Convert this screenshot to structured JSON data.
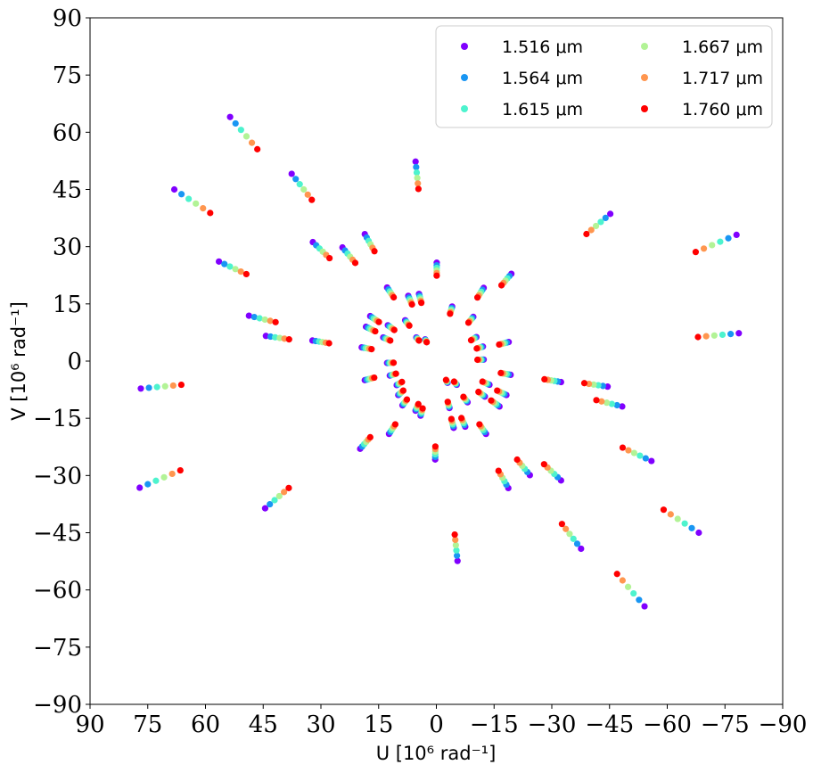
{
  "chart_data": {
    "type": "scatter",
    "title": "",
    "xlabel": "U [10⁶ rad⁻¹]",
    "ylabel": "V [10⁶ rad⁻¹]",
    "xlim": [
      90,
      -90
    ],
    "ylim": [
      -90,
      90
    ],
    "xticks": [
      90,
      75,
      60,
      45,
      30,
      15,
      0,
      -15,
      -30,
      -45,
      -60,
      -75,
      -90
    ],
    "yticks": [
      90,
      75,
      60,
      45,
      30,
      15,
      0,
      -15,
      -30,
      -45,
      -60,
      -75,
      -90
    ],
    "xtick_labels": [
      "90",
      "75",
      "60",
      "45",
      "30",
      "15",
      "0",
      "−15",
      "−30",
      "−45",
      "−60",
      "−75",
      "−90"
    ],
    "ytick_labels": [
      "90",
      "75",
      "60",
      "45",
      "30",
      "15",
      "0",
      "−15",
      "−30",
      "−45",
      "−60",
      "−75",
      "−90"
    ],
    "grid": false,
    "legend_position": "top-right",
    "legend_columns": 2,
    "series": [
      {
        "name": "1.516 μm",
        "color": "#8000ff"
      },
      {
        "name": "1.564 μm",
        "color": "#1996f3"
      },
      {
        "name": "1.615 μm",
        "color": "#4df3ce"
      },
      {
        "name": "1.667 μm",
        "color": "#b2f396"
      },
      {
        "name": "1.717 μm",
        "color": "#ff964f"
      },
      {
        "name": "1.760 μm",
        "color": "#ff0000"
      }
    ],
    "baselines": [
      {
        "u": 53.6,
        "v": 64.0,
        "ratio": 0.868
      },
      {
        "u": 37.6,
        "v": 49.1,
        "ratio": 0.861
      },
      {
        "u": 5.4,
        "v": 52.3,
        "ratio": 0.863
      },
      {
        "u": 68.1,
        "v": 45.0,
        "ratio": 0.863
      },
      {
        "u": -45.2,
        "v": 38.6,
        "ratio": 0.863
      },
      {
        "u": -78.0,
        "v": 33.1,
        "ratio": 0.864
      },
      {
        "u": 32.1,
        "v": 31.2,
        "ratio": 0.865
      },
      {
        "u": 24.4,
        "v": 29.8,
        "ratio": 0.864
      },
      {
        "u": 18.6,
        "v": 33.3,
        "ratio": 0.865
      },
      {
        "u": 56.5,
        "v": 26.1,
        "ratio": 0.874
      },
      {
        "u": -0.1,
        "v": 25.8,
        "ratio": 0.868
      },
      {
        "u": -19.5,
        "v": 22.9,
        "ratio": 0.868
      },
      {
        "u": 48.7,
        "v": 11.9,
        "ratio": 0.858
      },
      {
        "u": 44.3,
        "v": 6.6,
        "ratio": 0.864
      },
      {
        "u": 32.2,
        "v": 5.4,
        "ratio": 0.866
      },
      {
        "u": -78.6,
        "v": 7.3,
        "ratio": 0.865
      },
      {
        "u": 76.8,
        "v": -7.2,
        "ratio": 0.863
      },
      {
        "u": 77.1,
        "v": -33.2,
        "ratio": 0.863
      },
      {
        "u": 44.5,
        "v": -38.6,
        "ratio": 0.862
      },
      {
        "u": 0.3,
        "v": -25.8,
        "ratio": 0.868
      },
      {
        "u": -5.5,
        "v": -52.4,
        "ratio": 0.868
      },
      {
        "u": -18.7,
        "v": -33.3,
        "ratio": 0.864
      },
      {
        "u": -24.3,
        "v": -29.9,
        "ratio": 0.864
      },
      {
        "u": -32.4,
        "v": -31.3,
        "ratio": 0.864
      },
      {
        "u": -37.6,
        "v": -49.2,
        "ratio": 0.868
      },
      {
        "u": -54.1,
        "v": -64.3,
        "ratio": 0.868
      },
      {
        "u": -68.2,
        "v": -45.0,
        "ratio": 0.866
      },
      {
        "u": -55.9,
        "v": -26.2,
        "ratio": 0.866
      },
      {
        "u": -48.3,
        "v": -11.9,
        "ratio": 0.861
      },
      {
        "u": -44.5,
        "v": -6.7,
        "ratio": 0.864
      },
      {
        "u": -32.4,
        "v": -5.5,
        "ratio": 0.867
      },
      {
        "u": 19.8,
        "v": -23.0,
        "ratio": 0.868
      },
      {
        "u": 12.8,
        "v": 19.3,
        "ratio": 0.866
      },
      {
        "u": 7.3,
        "v": 17.1,
        "ratio": 0.868
      },
      {
        "u": 17.2,
        "v": 11.8,
        "ratio": 0.868
      },
      {
        "u": 18.3,
        "v": 9.0,
        "ratio": 0.868
      },
      {
        "u": 19.4,
        "v": 3.6,
        "ratio": 0.868
      },
      {
        "u": 8.1,
        "v": 10.7,
        "ratio": 0.868
      },
      {
        "u": 5.2,
        "v": 6.2,
        "ratio": 0.868
      },
      {
        "u": 2.9,
        "v": 5.7,
        "ratio": 0.868
      },
      {
        "u": 12.6,
        "v": 9.4,
        "ratio": 0.868
      },
      {
        "u": 13.8,
        "v": 6.2,
        "ratio": 0.868
      },
      {
        "u": 4.5,
        "v": 17.6,
        "ratio": 0.868
      },
      {
        "u": -4.1,
        "v": 14.3,
        "ratio": 0.868
      },
      {
        "u": -9.6,
        "v": 11.6,
        "ratio": 0.868
      },
      {
        "u": -12.3,
        "v": 19.2,
        "ratio": 0.868
      },
      {
        "u": -10.4,
        "v": 6.3,
        "ratio": 0.868
      },
      {
        "u": -12.1,
        "v": 3.8,
        "ratio": 0.868
      },
      {
        "u": -18.8,
        "v": 5.0,
        "ratio": 0.868
      },
      {
        "u": 18.6,
        "v": -5.0,
        "ratio": 0.868
      },
      {
        "u": 12.8,
        "v": -0.5,
        "ratio": 0.868
      },
      {
        "u": 12.1,
        "v": -3.8,
        "ratio": 0.868
      },
      {
        "u": 10.3,
        "v": -6.3,
        "ratio": 0.868
      },
      {
        "u": 9.9,
        "v": -8.9,
        "ratio": 0.868
      },
      {
        "u": 8.8,
        "v": -11.6,
        "ratio": 0.868
      },
      {
        "u": 5.4,
        "v": -13.0,
        "ratio": 0.868
      },
      {
        "u": 12.3,
        "v": -19.1,
        "ratio": 0.868
      },
      {
        "u": 4.1,
        "v": -14.3,
        "ratio": 0.868
      },
      {
        "u": -2.9,
        "v": -5.7,
        "ratio": 0.868
      },
      {
        "u": -5.3,
        "v": -6.2,
        "ratio": 0.868
      },
      {
        "u": -3.4,
        "v": -12.3,
        "ratio": 0.868
      },
      {
        "u": -4.5,
        "v": -17.5,
        "ratio": 0.868
      },
      {
        "u": -7.5,
        "v": -17.2,
        "ratio": 0.868
      },
      {
        "u": -8.1,
        "v": -10.8,
        "ratio": 0.868
      },
      {
        "u": -12.6,
        "v": -9.3,
        "ratio": 0.868
      },
      {
        "u": -12.9,
        "v": -19.1,
        "ratio": 0.868
      },
      {
        "u": -13.8,
        "v": -6.2,
        "ratio": 0.868
      },
      {
        "u": -16.4,
        "v": -11.9,
        "ratio": 0.868
      },
      {
        "u": -19.3,
        "v": -3.6,
        "ratio": 0.868
      },
      {
        "u": -18.2,
        "v": -8.9,
        "ratio": 0.868
      },
      {
        "u": -12.3,
        "v": 0.4,
        "ratio": 0.868
      }
    ]
  }
}
